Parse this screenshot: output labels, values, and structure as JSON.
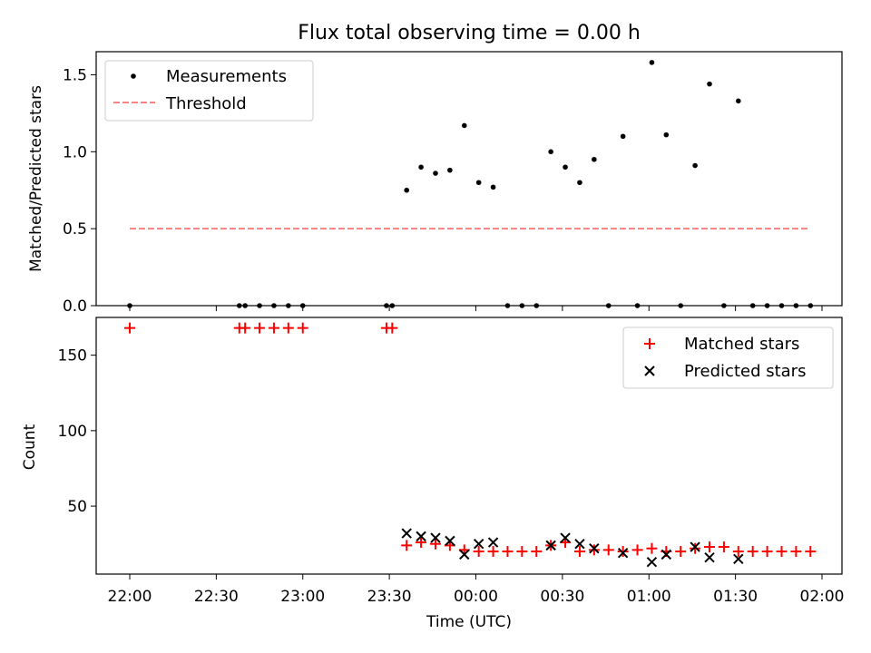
{
  "chart_data": [
    {
      "type": "scatter",
      "title": "Flux total observing time = 0.00 h",
      "ylabel": "Matched/Predicted stars",
      "xlabel": "",
      "ylim": [
        0,
        1.65
      ],
      "yticks": [
        "0.0",
        "0.5",
        "1.0",
        "1.5"
      ],
      "legend": {
        "placement": "top-left",
        "entries": [
          "Measurements",
          "Threshold"
        ]
      },
      "threshold": {
        "name": "Threshold",
        "value": 0.5,
        "x_start": "22:00",
        "x_end": "01:55",
        "color": "#ff8080"
      },
      "series": [
        {
          "name": "Measurements",
          "color": "#000000",
          "marker": "dot",
          "x": [
            "22:00",
            "22:38",
            "22:40",
            "22:45",
            "22:50",
            "22:55",
            "23:00",
            "23:29",
            "23:31",
            "23:36",
            "23:41",
            "23:46",
            "23:51",
            "23:56",
            "24:01",
            "24:06",
            "24:11",
            "24:16",
            "24:21",
            "24:26",
            "24:31",
            "24:36",
            "24:41",
            "24:46",
            "24:51",
            "24:56",
            "25:01",
            "25:06",
            "25:11",
            "25:16",
            "25:21",
            "25:26",
            "25:31",
            "25:36",
            "25:41",
            "25:46",
            "25:51",
            "25:56"
          ],
          "y": [
            0,
            0,
            0,
            0,
            0,
            0,
            0,
            0,
            0,
            0.75,
            0.9,
            0.86,
            0.88,
            1.17,
            0.8,
            0.77,
            0,
            0,
            0,
            1.0,
            0.9,
            0.8,
            0.95,
            0,
            1.1,
            0,
            1.58,
            1.11,
            0,
            0.91,
            1.44,
            0,
            1.33,
            0,
            0,
            0,
            0,
            0
          ]
        }
      ]
    },
    {
      "type": "scatter",
      "title": "",
      "xlabel": "Time (UTC)",
      "ylabel": "Count",
      "ylim": [
        5,
        175
      ],
      "yticks": [
        "50",
        "100",
        "150"
      ],
      "xticks": [
        "22:00",
        "22:30",
        "23:00",
        "23:30",
        "00:00",
        "00:30",
        "01:00",
        "01:30",
        "02:00"
      ],
      "legend": {
        "placement": "top-right",
        "entries": [
          "Matched stars",
          "Predicted stars"
        ]
      },
      "series": [
        {
          "name": "Matched stars",
          "color": "#ff0000",
          "marker": "plus",
          "x": [
            "22:00",
            "22:38",
            "22:40",
            "22:45",
            "22:50",
            "22:55",
            "23:00",
            "23:29",
            "23:31",
            "23:36",
            "23:41",
            "23:46",
            "23:51",
            "23:56",
            "24:01",
            "24:06",
            "24:11",
            "24:16",
            "24:21",
            "24:26",
            "24:31",
            "24:36",
            "24:41",
            "24:46",
            "24:51",
            "24:56",
            "25:01",
            "25:06",
            "25:11",
            "25:16",
            "25:21",
            "25:26",
            "25:31",
            "25:36",
            "25:41",
            "25:46",
            "25:51",
            "25:56"
          ],
          "y": [
            168,
            168,
            168,
            168,
            168,
            168,
            168,
            168,
            168,
            24,
            26,
            25,
            24,
            21,
            20,
            20,
            20,
            20,
            20,
            24,
            26,
            20,
            21,
            21,
            20,
            21,
            22,
            20,
            20,
            22,
            23,
            23,
            20,
            20,
            20,
            20,
            20,
            20
          ]
        },
        {
          "name": "Predicted stars",
          "color": "#000000",
          "marker": "x",
          "x": [
            "23:36",
            "23:41",
            "23:46",
            "23:51",
            "23:56",
            "24:01",
            "24:06",
            "24:26",
            "24:31",
            "24:36",
            "24:41",
            "24:51",
            "25:01",
            "25:06",
            "25:16",
            "25:21",
            "25:31"
          ],
          "y": [
            32,
            30,
            29,
            27,
            18,
            25,
            26,
            24,
            29,
            25,
            22,
            19,
            13,
            18,
            23,
            16,
            15
          ]
        }
      ]
    }
  ]
}
